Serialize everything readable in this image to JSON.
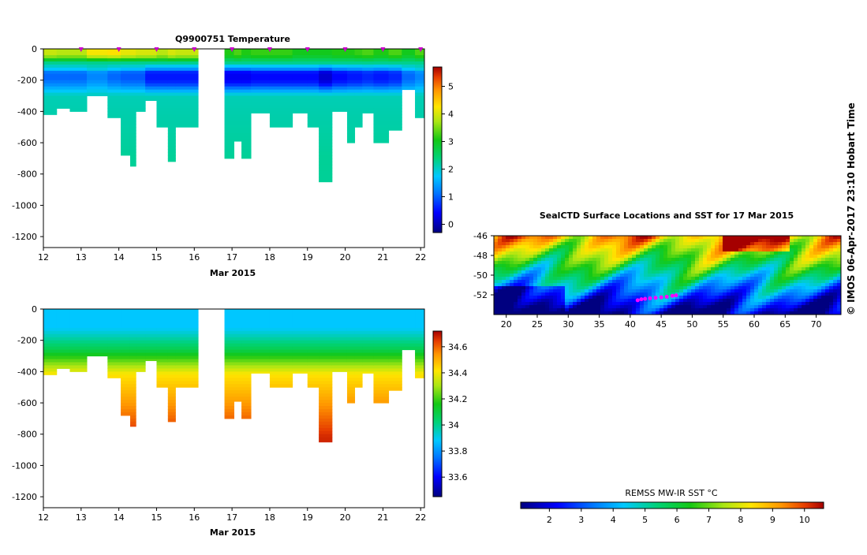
{
  "credit": "© IMOS 06-Apr-2017 23:10 Hobart Time",
  "chart_data": [
    {
      "type": "heatmap",
      "id": "temperature",
      "title": "Q9900751  Temperature",
      "xlabel": "Mar 2015",
      "ylabel": "",
      "xlim": [
        12,
        22.1
      ],
      "ylim": [
        -1270,
        0
      ],
      "xticks": [
        12,
        13,
        14,
        15,
        16,
        17,
        18,
        19,
        20,
        21,
        22
      ],
      "yticks": [
        0,
        -200,
        -400,
        -600,
        -800,
        -1000,
        -1200
      ],
      "colorbar": {
        "ticks": [
          0,
          1,
          2,
          3,
          4,
          5
        ],
        "range": [
          -0.3,
          5.7
        ]
      },
      "markers_x": [
        13,
        14,
        15,
        16,
        17,
        18,
        19,
        20,
        21,
        22
      ],
      "profiles": [
        {
          "t0": 12.0,
          "t1": 12.35,
          "depth": 420,
          "ts": 3.9,
          "min": 1.0
        },
        {
          "t0": 12.35,
          "t1": 12.7,
          "depth": 380,
          "ts": 3.8,
          "min": 1.0
        },
        {
          "t0": 12.7,
          "t1": 13.15,
          "depth": 400,
          "ts": 3.8,
          "min": 1.0
        },
        {
          "t0": 13.15,
          "t1": 13.7,
          "depth": 300,
          "ts": 4.2,
          "min": 1.2
        },
        {
          "t0": 13.7,
          "t1": 14.05,
          "depth": 440,
          "ts": 4.3,
          "min": 1.0
        },
        {
          "t0": 14.05,
          "t1": 14.3,
          "depth": 680,
          "ts": 4.1,
          "min": 0.9
        },
        {
          "t0": 14.3,
          "t1": 14.45,
          "depth": 750,
          "ts": 4.1,
          "min": 0.9
        },
        {
          "t0": 14.45,
          "t1": 14.7,
          "depth": 400,
          "ts": 4.0,
          "min": 0.9
        },
        {
          "t0": 14.7,
          "t1": 15.0,
          "depth": 330,
          "ts": 4.0,
          "min": 0.5
        },
        {
          "t0": 15.0,
          "t1": 15.3,
          "depth": 500,
          "ts": 3.8,
          "min": 0.5
        },
        {
          "t0": 15.3,
          "t1": 15.5,
          "depth": 720,
          "ts": 4.0,
          "min": 0.5
        },
        {
          "t0": 15.5,
          "t1": 16.1,
          "depth": 500,
          "ts": 3.9,
          "min": 0.5
        },
        {
          "t0": 16.8,
          "t1": 17.05,
          "depth": 700,
          "ts": 3.1,
          "min": 0.3
        },
        {
          "t0": 17.05,
          "t1": 17.25,
          "depth": 590,
          "ts": 3.3,
          "min": 0.3
        },
        {
          "t0": 17.25,
          "t1": 17.5,
          "depth": 700,
          "ts": 3.1,
          "min": 0.3
        },
        {
          "t0": 17.5,
          "t1": 18.0,
          "depth": 410,
          "ts": 3.2,
          "min": 0.4
        },
        {
          "t0": 18.0,
          "t1": 18.6,
          "depth": 500,
          "ts": 3.2,
          "min": 0.4
        },
        {
          "t0": 18.6,
          "t1": 19.0,
          "depth": 410,
          "ts": 3.0,
          "min": 0.4
        },
        {
          "t0": 19.0,
          "t1": 19.3,
          "depth": 500,
          "ts": 3.0,
          "min": 0.4
        },
        {
          "t0": 19.3,
          "t1": 19.65,
          "depth": 850,
          "ts": 3.0,
          "min": 0.1
        },
        {
          "t0": 19.65,
          "t1": 20.05,
          "depth": 400,
          "ts": 3.1,
          "min": 0.4
        },
        {
          "t0": 20.05,
          "t1": 20.25,
          "depth": 600,
          "ts": 3.1,
          "min": 0.5
        },
        {
          "t0": 20.25,
          "t1": 20.45,
          "depth": 500,
          "ts": 3.2,
          "min": 0.5
        },
        {
          "t0": 20.45,
          "t1": 20.75,
          "depth": 410,
          "ts": 3.3,
          "min": 0.6
        },
        {
          "t0": 20.75,
          "t1": 21.15,
          "depth": 600,
          "ts": 3.1,
          "min": 0.5
        },
        {
          "t0": 21.15,
          "t1": 21.5,
          "depth": 520,
          "ts": 3.3,
          "min": 0.6
        },
        {
          "t0": 21.5,
          "t1": 21.85,
          "depth": 260,
          "ts": 3.0,
          "min": 1.0
        },
        {
          "t0": 21.85,
          "t1": 22.1,
          "depth": 440,
          "ts": 3.3,
          "min": 1.2
        }
      ]
    },
    {
      "type": "heatmap",
      "id": "salinity",
      "title": "",
      "xlabel": "Mar 2015",
      "ylabel": "",
      "xlim": [
        12,
        22.1
      ],
      "ylim": [
        -1270,
        0
      ],
      "xticks": [
        12,
        13,
        14,
        15,
        16,
        17,
        18,
        19,
        20,
        21,
        22
      ],
      "yticks": [
        0,
        -200,
        -400,
        -600,
        -800,
        -1000,
        -1200
      ],
      "colorbar": {
        "ticks": [
          33.6,
          33.8,
          34,
          34.2,
          34.4,
          34.6
        ],
        "range": [
          33.45,
          34.72
        ]
      },
      "reference": "temperature"
    },
    {
      "type": "heatmap",
      "id": "sst_map",
      "title": "SealCTD Surface Locations and SST for 17 Mar 2015",
      "xlabel": "",
      "ylabel": "",
      "xlim": [
        18,
        74
      ],
      "ylim": [
        -54,
        -46
      ],
      "xticks": [
        20,
        25,
        30,
        35,
        40,
        45,
        50,
        55,
        60,
        65,
        70
      ],
      "yticks": [
        -46,
        -48,
        -50,
        -52
      ],
      "colorbar_label": "REMSS MW-IR SST °C",
      "colorbar": {
        "ticks": [
          2,
          3,
          4,
          5,
          6,
          7,
          8,
          9,
          10
        ],
        "range": [
          1.1,
          10.6
        ]
      },
      "locations": [
        {
          "lon": 41.2,
          "lat": -52.55
        },
        {
          "lon": 41.8,
          "lat": -52.45
        },
        {
          "lon": 42.4,
          "lat": -52.4
        },
        {
          "lon": 43.2,
          "lat": -52.35
        },
        {
          "lon": 44.1,
          "lat": -52.3
        },
        {
          "lon": 45.0,
          "lat": -52.25
        },
        {
          "lon": 45.9,
          "lat": -52.2
        },
        {
          "lon": 46.8,
          "lat": -52.1
        },
        {
          "lon": 47.4,
          "lat": -52.05
        }
      ]
    }
  ]
}
